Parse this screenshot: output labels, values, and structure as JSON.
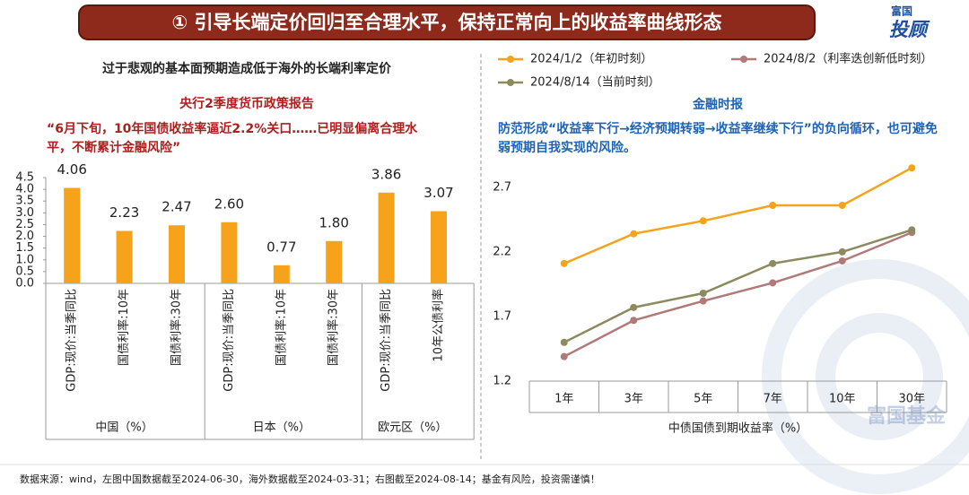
{
  "header": {
    "title": "① 引导长端定价回归至合理水平，保持正常向上的收益率曲线形态",
    "logo_top": "富国",
    "logo_bottom": "投顾"
  },
  "chart_data": [
    {
      "type": "bar",
      "title": "过于悲观的基本面预期造成低于海外的长端利率定价",
      "subtitle": "央行2季度货币政策报告",
      "annotation": "“6月下旬，10年国债收益率逼近2.2%关口……已明显偏离合理水平，不断累计金融风险”",
      "color": "#f7a21b",
      "groups": [
        {
          "name": "中国（%）",
          "categories": [
            "GDP:现价:当季同比",
            "国债利率:10年",
            "国债利率:30年"
          ],
          "values": [
            4.06,
            2.23,
            2.47
          ],
          "value_labels": [
            "4.06",
            "2.23",
            "2.47"
          ]
        },
        {
          "name": "日本（%）",
          "categories": [
            "GDP:现价:当季同比",
            "国债利率:10年",
            "国债利率:30年"
          ],
          "values": [
            2.6,
            0.77,
            1.8
          ],
          "value_labels": [
            "2.60",
            "0.77",
            "1.80"
          ]
        },
        {
          "name": "欧元区（%）",
          "categories": [
            "GDP:现价:当季同比",
            "10年公债利率"
          ],
          "values": [
            3.86,
            3.07
          ],
          "value_labels": [
            "3.86",
            "3.07"
          ]
        }
      ],
      "ylim": [
        0,
        4.5
      ],
      "yticks": [
        {
          "value": 0,
          "label": "0.0"
        },
        0.5,
        {
          "value": 1,
          "label": "1.0"
        },
        1.5,
        {
          "value": 2,
          "label": "2.0"
        },
        2.5,
        {
          "value": 3,
          "label": "3.0"
        },
        3.5,
        {
          "value": 4,
          "label": "4.0"
        },
        4.5
      ]
    },
    {
      "type": "line",
      "subtitle": "金融时报",
      "annotation": "防范形成“收益率下行→经济预期转弱→收益率继续下行”的负向循环，也可避免弱预期自我实现的风险。",
      "x_label": "中债国债到期收益率（%）",
      "categories": [
        "1年",
        "3年",
        "5年",
        "7年",
        "10年",
        "30年"
      ],
      "series": [
        {
          "name": "2024/1/2（年初时刻）",
          "color": "#f5a31a",
          "values": [
            2.11,
            2.34,
            2.44,
            2.56,
            2.56,
            2.85
          ]
        },
        {
          "name": "2024/8/2（利率迭创新低时刻）",
          "color": "#b07a78",
          "values": [
            1.39,
            1.67,
            1.82,
            1.96,
            2.13,
            2.35
          ]
        },
        {
          "name": "2024/8/14（当前时刻）",
          "color": "#8c8a5e",
          "values": [
            1.5,
            1.77,
            1.88,
            2.11,
            2.2,
            2.37
          ]
        }
      ],
      "ylim": [
        1.2,
        2.9
      ],
      "yticks": [
        1.2,
        1.7,
        2.2,
        2.7
      ]
    }
  ],
  "footer": "数据来源：wind，左图中国数据截至2024-06-30，海外数据截至2024-03-31；右图截至2024-08-14；基金有风险，投资需谨慎！",
  "watermark": "富国基金"
}
